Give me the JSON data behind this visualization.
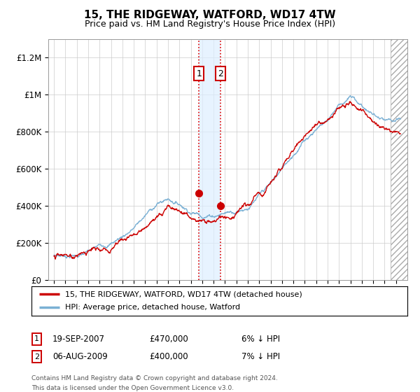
{
  "title": "15, THE RIDGEWAY, WATFORD, WD17 4TW",
  "subtitle": "Price paid vs. HM Land Registry's House Price Index (HPI)",
  "ylabel_ticks": [
    "£0",
    "£200K",
    "£400K",
    "£600K",
    "£800K",
    "£1M",
    "£1.2M"
  ],
  "ytick_values": [
    0,
    200000,
    400000,
    600000,
    800000,
    1000000,
    1200000
  ],
  "ylim": [
    0,
    1300000
  ],
  "xlim_start": 1994.5,
  "xlim_end": 2025.5,
  "purchase1_year": 2007.72,
  "purchase1_price": 470000,
  "purchase1_date": "19-SEP-2007",
  "purchase1_pct": "6%",
  "purchase2_year": 2009.6,
  "purchase2_price": 400000,
  "purchase2_date": "06-AUG-2009",
  "purchase2_pct": "7%",
  "line_color_property": "#cc0000",
  "line_color_hpi": "#7ab0d4",
  "legend_property": "15, THE RIDGEWAY, WATFORD, WD17 4TW (detached house)",
  "legend_hpi": "HPI: Average price, detached house, Watford",
  "footnote_line1": "Contains HM Land Registry data © Crown copyright and database right 2024.",
  "footnote_line2": "This data is licensed under the Open Government Licence v3.0.",
  "hatch_start": 2024.5,
  "shade_color": "#ddeeff",
  "hpi_knots_t": [
    0,
    1,
    2,
    3,
    4,
    5,
    6,
    7,
    8,
    9,
    10,
    11,
    12,
    13,
    14,
    15,
    16,
    17,
    18,
    19,
    20,
    21,
    22,
    23,
    24,
    25,
    26,
    27,
    28,
    29,
    30
  ],
  "hpi_knots_v": [
    135,
    138,
    142,
    155,
    175,
    200,
    240,
    290,
    350,
    410,
    440,
    420,
    390,
    380,
    390,
    410,
    430,
    460,
    510,
    560,
    630,
    720,
    800,
    870,
    920,
    1010,
    1050,
    1000,
    950,
    900,
    870
  ],
  "prop_knots_t": [
    0,
    1,
    2,
    3,
    4,
    5,
    6,
    7,
    8,
    9,
    10,
    11,
    12,
    13,
    14,
    15,
    16,
    17,
    18,
    19,
    20,
    21,
    22,
    23,
    24,
    25,
    26,
    27,
    28,
    29,
    30
  ],
  "prop_knots_v": [
    130,
    133,
    138,
    148,
    168,
    193,
    230,
    280,
    340,
    395,
    470,
    430,
    395,
    375,
    385,
    400,
    415,
    440,
    490,
    530,
    600,
    680,
    740,
    790,
    830,
    900,
    940,
    920,
    870,
    830,
    790
  ]
}
